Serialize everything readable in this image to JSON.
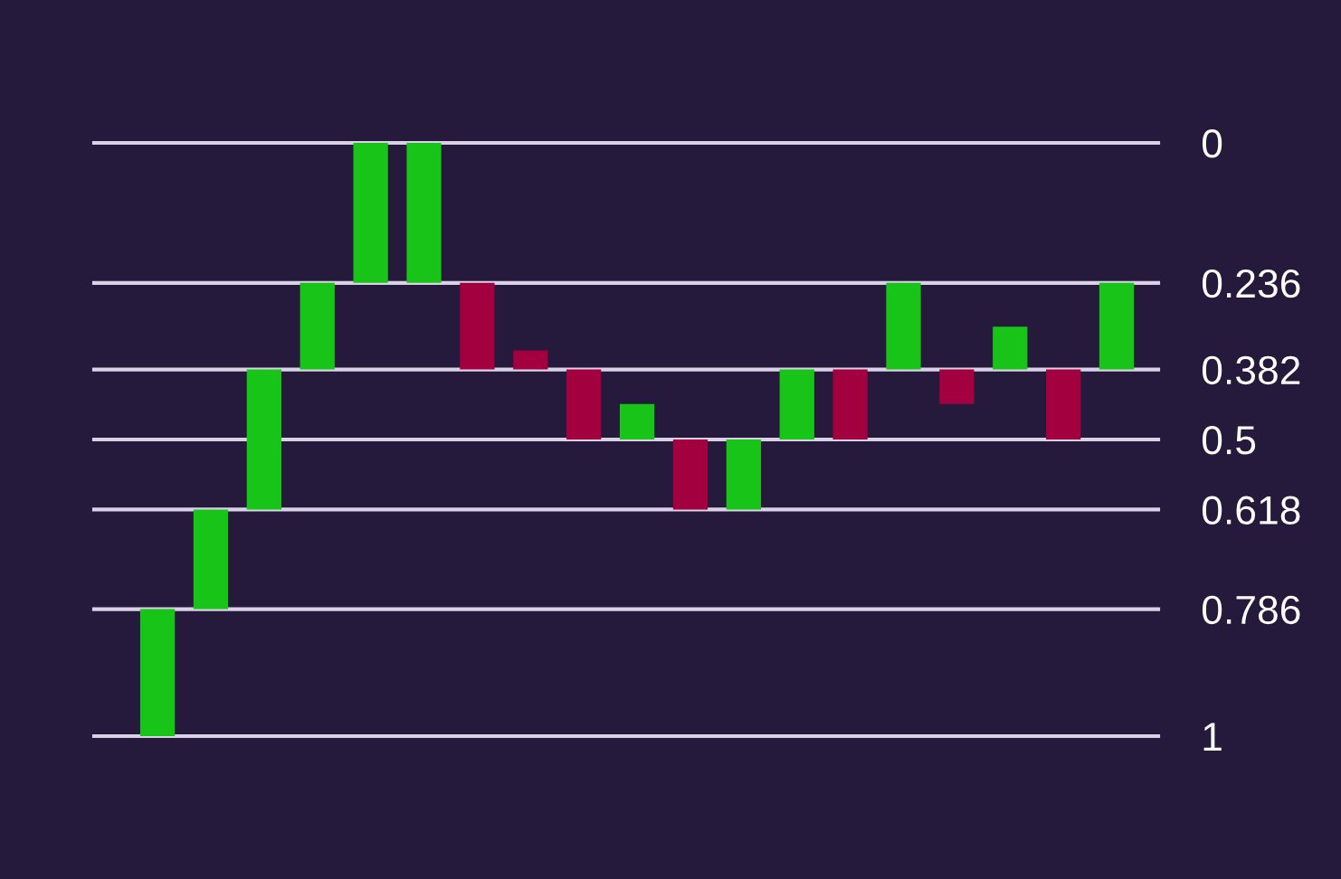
{
  "chart_data": {
    "type": "bar",
    "categories": [
      null,
      null,
      null,
      null,
      null,
      null,
      null,
      null,
      null,
      null,
      null,
      null,
      null,
      null,
      null,
      null,
      null,
      null,
      null
    ],
    "base": [
      0.786,
      0.618,
      0.382,
      0.236,
      0,
      0,
      0.236,
      0.35,
      0.382,
      0.44,
      0.5,
      0.5,
      0.382,
      0.382,
      0.236,
      0.382,
      0.31,
      0.382,
      0.236
    ],
    "values": [
      0.214,
      0.168,
      0.236,
      0.146,
      0.236,
      0.236,
      0.146,
      0.032,
      0.118,
      0.06,
      0.118,
      0.118,
      0.118,
      0.118,
      0.146,
      0.058,
      0.072,
      0.118,
      0.146
    ],
    "colors": [
      "#18c418",
      "#18c418",
      "#18c418",
      "#18c418",
      "#18c418",
      "#18c418",
      "#a2003e",
      "#a2003e",
      "#a2003e",
      "#18c418",
      "#a2003e",
      "#18c418",
      "#18c418",
      "#a2003e",
      "#18c418",
      "#a2003e",
      "#18c418",
      "#a2003e",
      "#18c418"
    ],
    "ylim": [
      1,
      0
    ],
    "yticks": [
      0,
      0.236,
      0.382,
      0.5,
      0.618,
      0.786,
      1
    ],
    "grid": "y",
    "tick_labels": "y"
  }
}
